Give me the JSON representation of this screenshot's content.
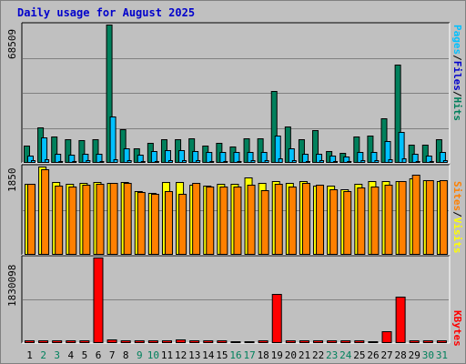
{
  "title": "Daily usage for August 2025",
  "colors": {
    "hits": "#00805c",
    "files": "#00c0ff",
    "visits": "#ffff00",
    "sites": "#ff8000",
    "kbytes": "#ff0000",
    "weekday_label": "#000000",
    "weekend_label": "#00805c"
  },
  "legends": {
    "top": {
      "pages": "Pages",
      "files": "Files",
      "hits": "Hits",
      "separator": "/"
    },
    "middle": {
      "sites": "Sites",
      "visits": "Visits",
      "separator": "/"
    },
    "bottom": {
      "kbytes": "KBytes"
    }
  },
  "axis_max_labels": {
    "top": "68509",
    "middle": "1850",
    "bottom": "1830098"
  },
  "chart_data": {
    "type": "bar",
    "title": "Daily usage for August 2025",
    "categories": [
      "1",
      "2",
      "3",
      "4",
      "5",
      "6",
      "7",
      "8",
      "9",
      "10",
      "11",
      "12",
      "13",
      "14",
      "15",
      "16",
      "17",
      "18",
      "19",
      "20",
      "21",
      "22",
      "23",
      "24",
      "25",
      "26",
      "27",
      "28",
      "29",
      "30",
      "31"
    ],
    "weekend_days": [
      "2",
      "3",
      "9",
      "10",
      "16",
      "17",
      "23",
      "24",
      "30",
      "31"
    ],
    "panels": [
      {
        "name": "top",
        "ylim": [
          0,
          68509
        ],
        "series": [
          {
            "name": "Hits",
            "values": [
              8500,
              17500,
              13000,
              11500,
              11300,
              11500,
              68509,
              16800,
              7000,
              9700,
              11500,
              11500,
              12300,
              8700,
              9800,
              8000,
              12000,
              12000,
              35800,
              18000,
              11500,
              16300,
              6000,
              5000,
              13000,
              13600,
              22300,
              48900,
              9000,
              8800,
              11500
            ]
          },
          {
            "name": "Files",
            "values": [
              3800,
              12500,
              4700,
              4200,
              4700,
              4700,
              23200,
              7300,
              3900,
              5700,
              6200,
              6400,
              5800,
              5400,
              5500,
              5200,
              5400,
              5600,
              13300,
              7000,
              4700,
              4700,
              3600,
              3000,
              5500,
              5500,
              10600,
              15200,
              4500,
              3800,
              5400
            ]
          },
          {
            "name": "Pages",
            "values": [
              1200,
              1700,
              1000,
              1100,
              1300,
              1000,
              2000,
              1500,
              900,
              1100,
              1200,
              1200,
              1300,
              1000,
              1100,
              1000,
              1200,
              1200,
              2100,
              1500,
              1100,
              1200,
              900,
              800,
              1200,
              1200,
              1600,
              2200,
              1000,
              900,
              1200
            ]
          }
        ]
      },
      {
        "name": "middle",
        "ylim": [
          0,
          1850
        ],
        "series": [
          {
            "name": "Visits",
            "values": [
              1480,
              1850,
              1520,
              1490,
              1510,
              1530,
              1510,
              1520,
              1330,
              1300,
              1530,
              1520,
              1470,
              1450,
              1480,
              1480,
              1620,
              1510,
              1540,
              1500,
              1540,
              1450,
              1440,
              1370,
              1480,
              1550,
              1540,
              1550,
              1600,
              1560,
              1550
            ]
          },
          {
            "name": "Sites",
            "values": [
              1480,
              1790,
              1450,
              1430,
              1460,
              1480,
              1500,
              1510,
              1310,
              1280,
              1340,
              1280,
              1510,
              1430,
              1430,
              1430,
              1470,
              1350,
              1490,
              1430,
              1510,
              1470,
              1380,
              1340,
              1410,
              1430,
              1470,
              1550,
              1670,
              1560,
              1560
            ]
          }
        ]
      },
      {
        "name": "bottom",
        "ylim": [
          0,
          1830098
        ],
        "series": [
          {
            "name": "KBytes",
            "values": [
              57000,
              57000,
              57000,
              57000,
              57000,
              1830098,
              85000,
              57000,
              57000,
              57000,
              57000,
              76000,
              65000,
              62000,
              57000,
              43000,
              48000,
              57000,
              1050000,
              57000,
              57000,
              57000,
              57000,
              57000,
              57000,
              48000,
              260000,
              1000000,
              57000,
              57000,
              57000
            ]
          }
        ]
      }
    ]
  }
}
